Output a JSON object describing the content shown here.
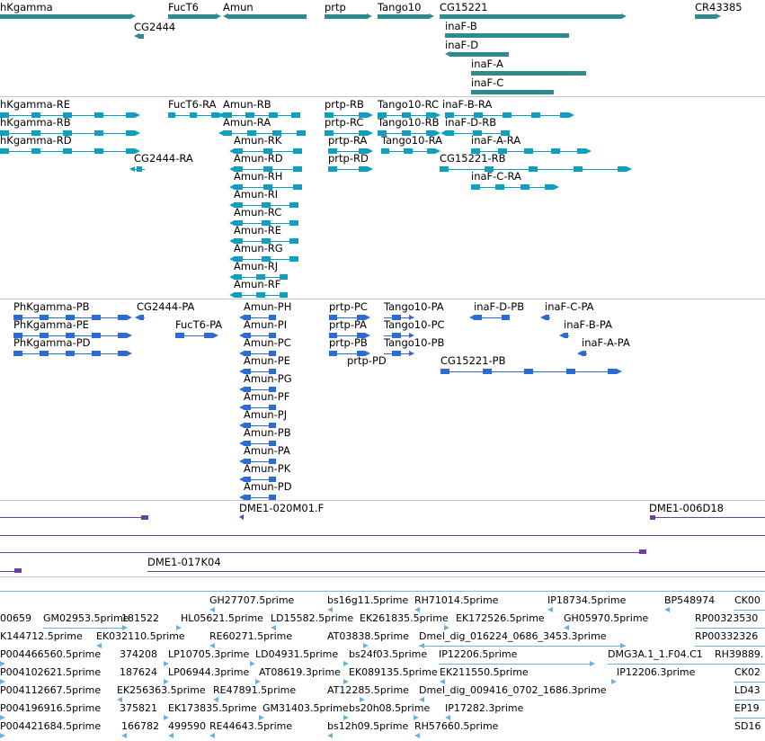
{
  "colors": {
    "gene": "#2f8a8c",
    "transcript_ra": "#0aa0c0",
    "protein_pa": "#2a6bd6",
    "clone": "#6a3fa0",
    "est": "#6fb2d9",
    "divider": "#c4c4c4"
  },
  "tracks": {
    "genes": [
      {
        "label": "hKgamma"
      },
      {
        "label": "CG2444"
      },
      {
        "label": "FucT6"
      },
      {
        "label": "Amun"
      },
      {
        "label": "prtp"
      },
      {
        "label": "Tango10"
      },
      {
        "label": "CG15221"
      },
      {
        "label": "inaF-B"
      },
      {
        "label": "inaF-D"
      },
      {
        "label": "inaF-A"
      },
      {
        "label": "inaF-C"
      },
      {
        "label": "CR43385"
      }
    ],
    "transcripts": [
      {
        "label": "hKgamma-RE"
      },
      {
        "label": "hKgamma-RB"
      },
      {
        "label": "hKgamma-RD"
      },
      {
        "label": "CG2444-RA"
      },
      {
        "label": "FucT6-RA"
      },
      {
        "label": "Amun-RB"
      },
      {
        "label": "Amun-RA"
      },
      {
        "label": "Amun-RK"
      },
      {
        "label": "Amun-RD"
      },
      {
        "label": "Amun-RH"
      },
      {
        "label": "Amun-RI"
      },
      {
        "label": "Amun-RC"
      },
      {
        "label": "Amun-RE"
      },
      {
        "label": "Amun-RG"
      },
      {
        "label": "Amun-RJ"
      },
      {
        "label": "Amun-RF"
      },
      {
        "label": "prtp-RB"
      },
      {
        "label": "prtp-RC"
      },
      {
        "label": "prtp-RA"
      },
      {
        "label": "prtp-RD"
      },
      {
        "label": "Tango10-RC"
      },
      {
        "label": "Tango10-RB"
      },
      {
        "label": "Tango10-RA"
      },
      {
        "label": "inaF-B-RA"
      },
      {
        "label": "inaF-D-RB"
      },
      {
        "label": "inaF-A-RA"
      },
      {
        "label": "CG15221-RB"
      },
      {
        "label": "inaF-C-RA"
      }
    ],
    "proteins": [
      {
        "label": "PhKgamma-PB"
      },
      {
        "label": "PhKgamma-PE"
      },
      {
        "label": "PhKgamma-PD"
      },
      {
        "label": "CG2444-PA"
      },
      {
        "label": "FucT6-PA"
      },
      {
        "label": "Amun-PH"
      },
      {
        "label": "Amun-PI"
      },
      {
        "label": "Amun-PC"
      },
      {
        "label": "Amun-PE"
      },
      {
        "label": "Amun-PG"
      },
      {
        "label": "Amun-PF"
      },
      {
        "label": "Amun-PJ"
      },
      {
        "label": "Amun-PB"
      },
      {
        "label": "Amun-PA"
      },
      {
        "label": "Amun-PK"
      },
      {
        "label": "Amun-PD"
      },
      {
        "label": "prtp-PC"
      },
      {
        "label": "prtp-PA"
      },
      {
        "label": "prtp-PB"
      },
      {
        "label": "prtp-PD"
      },
      {
        "label": "Tango10-PA"
      },
      {
        "label": "Tango10-PC"
      },
      {
        "label": "Tango10-PB"
      },
      {
        "label": "inaF-D-PB"
      },
      {
        "label": "inaF-C-PA"
      },
      {
        "label": "inaF-B-PA"
      },
      {
        "label": "inaF-A-PA"
      },
      {
        "label": "CG15221-PB"
      }
    ],
    "clones": [
      {
        "label": "DME1-020M01.F"
      },
      {
        "label": "DME1-006D18"
      },
      {
        "label": "DME1-017K04"
      }
    ],
    "ests": [
      {
        "label": "GH27707.5prime"
      },
      {
        "label": "bs16g11.5prime"
      },
      {
        "label": "RH71014.5prime"
      },
      {
        "label": "IP18734.5prime"
      },
      {
        "label": "BP548974"
      },
      {
        "label": "CK00"
      },
      {
        "label": "00659"
      },
      {
        "label": "GM02953.5prime"
      },
      {
        "label": "181522"
      },
      {
        "label": "HL05621.5prime"
      },
      {
        "label": "LD15582.5prime"
      },
      {
        "label": "EK261835.5prime"
      },
      {
        "label": "EK172526.5prime"
      },
      {
        "label": "GH05970.5prime"
      },
      {
        "label": "RP00323530"
      },
      {
        "label": "K144712.5prime"
      },
      {
        "label": "EK032110.5prime"
      },
      {
        "label": "RE60271.5prime"
      },
      {
        "label": "AT03838.5prime"
      },
      {
        "label": "Dmel_dig_016224_0686_3453.3prime"
      },
      {
        "label": "RP00332326"
      },
      {
        "label": "P004466560.5prime"
      },
      {
        "label": "374208"
      },
      {
        "label": "LP10705.3prime"
      },
      {
        "label": "LD04931.5prime"
      },
      {
        "label": "bs24f03.5prime"
      },
      {
        "label": "IP12206.5prime"
      },
      {
        "label": "DMG3A.1_1.F04.C1"
      },
      {
        "label": "RH39889."
      },
      {
        "label": "P004102621.5prime"
      },
      {
        "label": "187624"
      },
      {
        "label": "LP06944.3prime"
      },
      {
        "label": "AT08619.3prime"
      },
      {
        "label": "EK089135.5prime"
      },
      {
        "label": "EK211550.5prime"
      },
      {
        "label": "IP12206.3prime"
      },
      {
        "label": "CK02"
      },
      {
        "label": "P004112667.5prime"
      },
      {
        "label": "EK256363.5prime"
      },
      {
        "label": "RE47891.5prime"
      },
      {
        "label": "AT12285.5prime"
      },
      {
        "label": "Dmel_dig_009416_0702_1686.3prime"
      },
      {
        "label": "LD43"
      },
      {
        "label": "P004196916.5prime"
      },
      {
        "label": "375821"
      },
      {
        "label": "EK173835.5prime"
      },
      {
        "label": "GM31403.5prime"
      },
      {
        "label": "bs20h08.5prime"
      },
      {
        "label": "IP17282.3prime"
      },
      {
        "label": "EP19"
      },
      {
        "label": "P004421684.5prime"
      },
      {
        "label": "166782"
      },
      {
        "label": "499590"
      },
      {
        "label": "RE44643.5prime"
      },
      {
        "label": "bs12h09.5prime"
      },
      {
        "label": "RH57660.5prime"
      },
      {
        "label": "SD16"
      }
    ]
  }
}
